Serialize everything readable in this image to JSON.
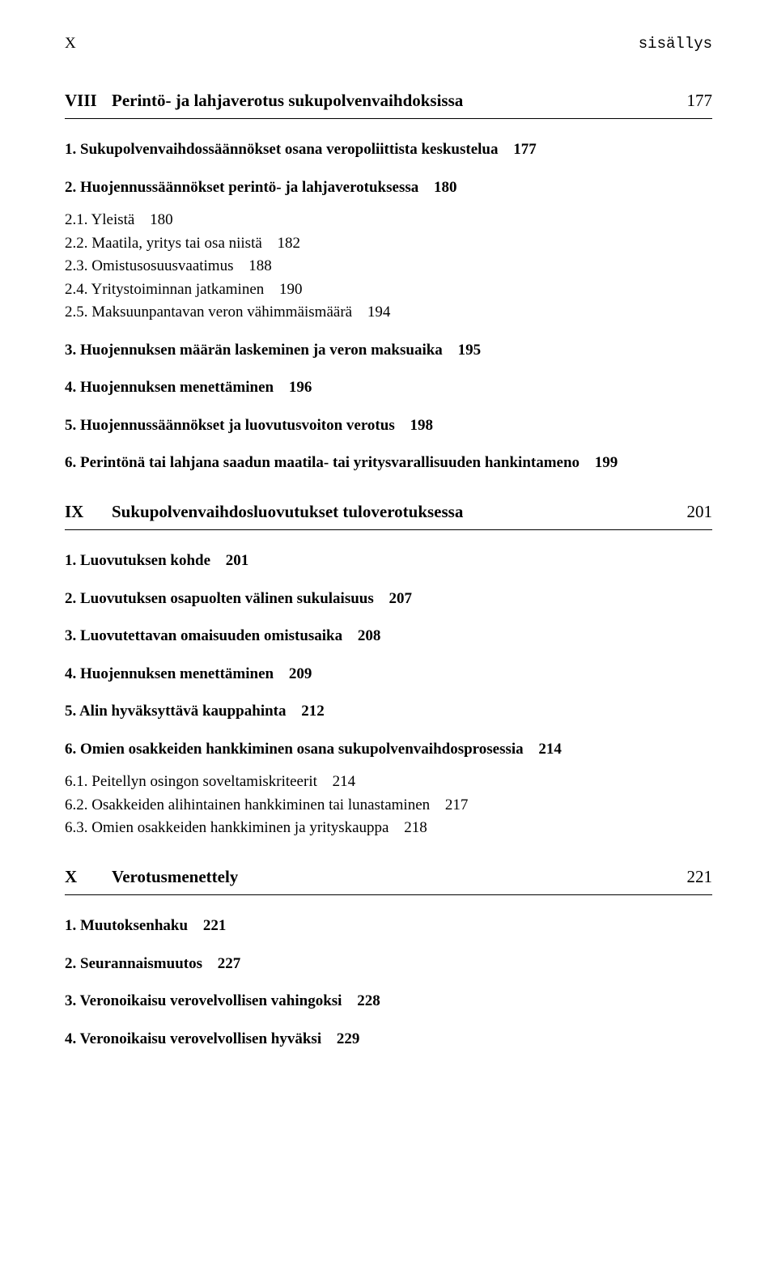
{
  "header": {
    "roman": "X",
    "label": "sisällys"
  },
  "sections": [
    {
      "roman": "VIII",
      "title": "Perintö- ja lahjaverotus sukupolvenvaihdoksissa",
      "page": "177",
      "entries": [
        {
          "bold": true,
          "num": "1.",
          "text": "Sukupolvenvaihdossäännökset osana veropoliittista keskustelua",
          "page": "177"
        },
        {
          "bold": true,
          "num": "2.",
          "text": "Huojennussäännökset perintö- ja lahjaverotuksessa",
          "page": "180"
        },
        {
          "sub": true,
          "num": "2.1.",
          "text": "Yleistä",
          "page": "180"
        },
        {
          "sub": true,
          "num": "2.2.",
          "text": "Maatila, yritys tai osa niistä",
          "page": "182"
        },
        {
          "sub": true,
          "num": "2.3.",
          "text": "Omistusosuusvaatimus",
          "page": "188"
        },
        {
          "sub": true,
          "num": "2.4.",
          "text": "Yritystoiminnan jatkaminen",
          "page": "190"
        },
        {
          "sub": true,
          "num": "2.5.",
          "text": "Maksuunpantavan veron vähimmäismäärä",
          "page": "194"
        },
        {
          "bold": true,
          "num": "3.",
          "text": "Huojennuksen määrän laskeminen ja veron maksuaika",
          "page": "195"
        },
        {
          "bold": true,
          "num": "4.",
          "text": "Huojennuksen menettäminen",
          "page": "196"
        },
        {
          "bold": true,
          "num": "5.",
          "text": "Huojennussäännökset ja luovutusvoiton verotus",
          "page": "198"
        },
        {
          "bold": true,
          "num": "6.",
          "multiline": true,
          "text": "Perintönä tai lahjana saadun maatila- tai yritysvarallisuuden hankintameno",
          "page": "199"
        }
      ]
    },
    {
      "roman": "IX",
      "title": "Sukupolvenvaihdosluovutukset tuloverotuksessa",
      "page": "201",
      "entries": [
        {
          "bold": true,
          "num": "1.",
          "text": "Luovutuksen kohde",
          "page": "201"
        },
        {
          "bold": true,
          "num": "2.",
          "text": "Luovutuksen osapuolten välinen sukulaisuus",
          "page": "207"
        },
        {
          "bold": true,
          "num": "3.",
          "text": "Luovutettavan omaisuuden omistusaika",
          "page": "208"
        },
        {
          "bold": true,
          "num": "4.",
          "text": "Huojennuksen menettäminen",
          "page": "209"
        },
        {
          "bold": true,
          "num": "5.",
          "text": "Alin hyväksyttävä kauppahinta",
          "page": "212"
        },
        {
          "bold": true,
          "num": "6.",
          "text": "Omien osakkeiden hankkiminen osana sukupolvenvaihdosprosessia",
          "page": "214"
        },
        {
          "sub": true,
          "num": "6.1.",
          "text": "Peitellyn osingon soveltamiskriteerit",
          "page": "214"
        },
        {
          "sub": true,
          "num": "6.2.",
          "text": "Osakkeiden alihintainen hankkiminen tai lunastaminen",
          "page": "217"
        },
        {
          "sub": true,
          "num": "6.3.",
          "text": "Omien osakkeiden hankkiminen ja yrityskauppa",
          "page": "218"
        }
      ]
    },
    {
      "roman": "X",
      "title": "Verotusmenettely",
      "page": "221",
      "entries": [
        {
          "bold": true,
          "num": "1.",
          "text": "Muutoksenhaku",
          "page": "221"
        },
        {
          "bold": true,
          "num": "2.",
          "text": "Seurannaismuutos",
          "page": "227"
        },
        {
          "bold": true,
          "num": "3.",
          "text": "Veronoikaisu verovelvollisen vahingoksi",
          "page": "228"
        },
        {
          "bold": true,
          "num": "4.",
          "text": "Veronoikaisu verovelvollisen hyväksi",
          "page": "229"
        }
      ]
    }
  ]
}
